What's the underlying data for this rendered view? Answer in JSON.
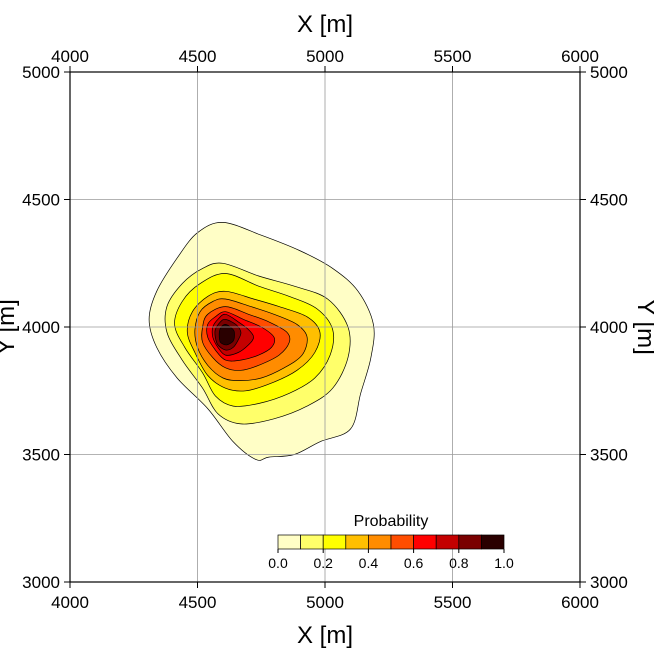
{
  "chart_data": {
    "type": "contour",
    "xlabel": "X [m]",
    "ylabel_left": "Y [m]",
    "ylabel_right": "Y [m]",
    "xlim": [
      4000,
      6000
    ],
    "ylim": [
      3000,
      5000
    ],
    "xticks": [
      4000,
      4500,
      5000,
      5500,
      6000
    ],
    "yticks": [
      3000,
      3500,
      4000,
      4500,
      5000
    ],
    "xtick_labels": [
      "4000",
      "4500",
      "5000",
      "5500",
      "6000"
    ],
    "ytick_labels": [
      "3000",
      "3500",
      "4000",
      "4500",
      "5000"
    ],
    "grid": true,
    "colorbar": {
      "title": "Probability",
      "range": [
        0.0,
        1.0
      ],
      "tick_labels": [
        "0.0",
        "0.2",
        "0.4",
        "0.6",
        "0.8",
        "1.0"
      ],
      "colors": [
        "#fffec6",
        "#ffff6a",
        "#ffff00",
        "#ffbf00",
        "#ff8c00",
        "#ff4d00",
        "#ff0000",
        "#c40000",
        "#7a0000",
        "#2a0000"
      ]
    },
    "contours": [
      {
        "level": 0.0,
        "points": [
          [
            4600,
            4410
          ],
          [
            4750,
            4360
          ],
          [
            4900,
            4300
          ],
          [
            5030,
            4230
          ],
          [
            5130,
            4140
          ],
          [
            5190,
            4010
          ],
          [
            5180,
            3880
          ],
          [
            5140,
            3740
          ],
          [
            5100,
            3600
          ],
          [
            4980,
            3550
          ],
          [
            4880,
            3500
          ],
          [
            4780,
            3490
          ],
          [
            4730,
            3480
          ],
          [
            4640,
            3550
          ],
          [
            4540,
            3680
          ],
          [
            4420,
            3800
          ],
          [
            4340,
            3920
          ],
          [
            4310,
            4030
          ],
          [
            4340,
            4140
          ],
          [
            4420,
            4270
          ],
          [
            4500,
            4370
          ]
        ]
      },
      {
        "level": 0.1,
        "points": [
          [
            4600,
            4250
          ],
          [
            4740,
            4200
          ],
          [
            4880,
            4160
          ],
          [
            5010,
            4110
          ],
          [
            5090,
            4000
          ],
          [
            5090,
            3880
          ],
          [
            5030,
            3760
          ],
          [
            4930,
            3690
          ],
          [
            4800,
            3640
          ],
          [
            4670,
            3620
          ],
          [
            4580,
            3660
          ],
          [
            4520,
            3760
          ],
          [
            4440,
            3870
          ],
          [
            4380,
            3980
          ],
          [
            4380,
            4080
          ],
          [
            4440,
            4170
          ],
          [
            4520,
            4230
          ]
        ]
      },
      {
        "level": 0.2,
        "points": [
          [
            4610,
            4210
          ],
          [
            4740,
            4160
          ],
          [
            4860,
            4120
          ],
          [
            4970,
            4070
          ],
          [
            5030,
            3990
          ],
          [
            5020,
            3890
          ],
          [
            4960,
            3800
          ],
          [
            4860,
            3740
          ],
          [
            4740,
            3700
          ],
          [
            4640,
            3690
          ],
          [
            4570,
            3730
          ],
          [
            4520,
            3820
          ],
          [
            4450,
            3920
          ],
          [
            4410,
            4010
          ],
          [
            4440,
            4100
          ],
          [
            4510,
            4170
          ]
        ]
      },
      {
        "level": 0.3,
        "points": [
          [
            4610,
            4140
          ],
          [
            4720,
            4110
          ],
          [
            4820,
            4080
          ],
          [
            4930,
            4040
          ],
          [
            4980,
            3980
          ],
          [
            4960,
            3900
          ],
          [
            4890,
            3830
          ],
          [
            4790,
            3780
          ],
          [
            4690,
            3750
          ],
          [
            4610,
            3760
          ],
          [
            4540,
            3810
          ],
          [
            4490,
            3900
          ],
          [
            4460,
            3980
          ],
          [
            4480,
            4060
          ],
          [
            4540,
            4120
          ]
        ]
      },
      {
        "level": 0.4,
        "points": [
          [
            4610,
            4110
          ],
          [
            4710,
            4080
          ],
          [
            4800,
            4050
          ],
          [
            4890,
            4010
          ],
          [
            4930,
            3960
          ],
          [
            4910,
            3890
          ],
          [
            4840,
            3840
          ],
          [
            4750,
            3800
          ],
          [
            4670,
            3790
          ],
          [
            4600,
            3800
          ],
          [
            4540,
            3850
          ],
          [
            4500,
            3920
          ],
          [
            4490,
            3990
          ],
          [
            4510,
            4060
          ],
          [
            4560,
            4100
          ]
        ]
      },
      {
        "level": 0.5,
        "points": [
          [
            4610,
            4080
          ],
          [
            4700,
            4050
          ],
          [
            4780,
            4020
          ],
          [
            4850,
            3980
          ],
          [
            4860,
            3940
          ],
          [
            4820,
            3890
          ],
          [
            4740,
            3850
          ],
          [
            4670,
            3830
          ],
          [
            4610,
            3840
          ],
          [
            4560,
            3880
          ],
          [
            4520,
            3940
          ],
          [
            4520,
            4000
          ],
          [
            4540,
            4050
          ]
        ]
      },
      {
        "level": 0.6,
        "points": [
          [
            4610,
            4060
          ],
          [
            4680,
            4030
          ],
          [
            4750,
            4000
          ],
          [
            4800,
            3960
          ],
          [
            4790,
            3920
          ],
          [
            4740,
            3890
          ],
          [
            4670,
            3870
          ],
          [
            4610,
            3870
          ],
          [
            4570,
            3910
          ],
          [
            4540,
            3960
          ],
          [
            4540,
            4010
          ],
          [
            4570,
            4040
          ]
        ]
      },
      {
        "level": 0.7,
        "points": [
          [
            4610,
            4050
          ],
          [
            4660,
            4020
          ],
          [
            4700,
            3990
          ],
          [
            4720,
            3960
          ],
          [
            4700,
            3930
          ],
          [
            4660,
            3900
          ],
          [
            4610,
            3890
          ],
          [
            4580,
            3920
          ],
          [
            4560,
            3960
          ],
          [
            4560,
            4000
          ],
          [
            4580,
            4030
          ]
        ]
      },
      {
        "level": 0.8,
        "points": [
          [
            4610,
            4030
          ],
          [
            4650,
            4010
          ],
          [
            4670,
            3980
          ],
          [
            4660,
            3950
          ],
          [
            4640,
            3920
          ],
          [
            4610,
            3910
          ],
          [
            4580,
            3930
          ],
          [
            4570,
            3960
          ],
          [
            4570,
            3990
          ],
          [
            4590,
            4020
          ]
        ]
      },
      {
        "level": 0.9,
        "points": [
          [
            4610,
            4010
          ],
          [
            4640,
            3990
          ],
          [
            4645,
            3970
          ],
          [
            4640,
            3945
          ],
          [
            4615,
            3930
          ],
          [
            4590,
            3940
          ],
          [
            4585,
            3970
          ],
          [
            4590,
            3995
          ]
        ]
      }
    ]
  }
}
